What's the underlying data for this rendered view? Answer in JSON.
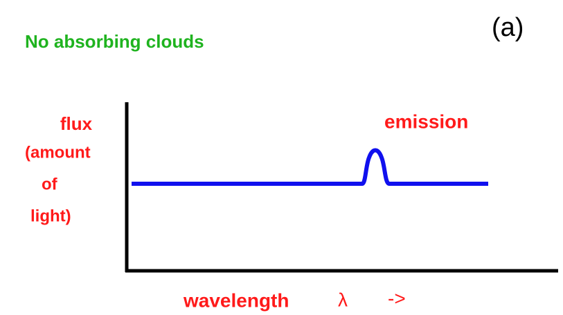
{
  "title": "No absorbing clouds",
  "panel_label": "(a)",
  "y_axis_label": [
    "flux",
    "(amount",
    "of",
    "light)"
  ],
  "annotation": "emission",
  "x_axis_label": {
    "word": "wavelength",
    "symbol": "λ",
    "arrow": "->"
  }
}
